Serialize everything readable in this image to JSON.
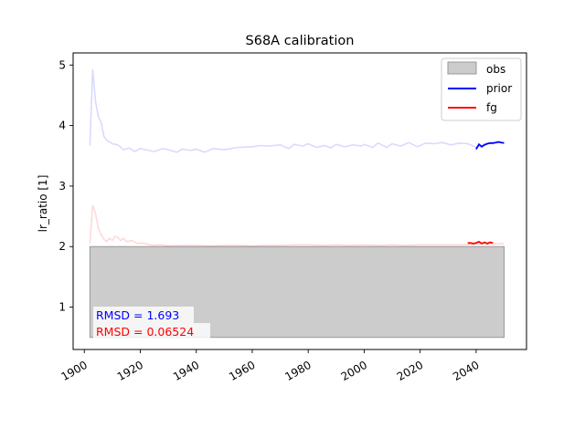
{
  "chart_data": {
    "type": "line",
    "title": "S68A calibration",
    "xlabel": "",
    "ylabel": "lr_ratio [1]",
    "xlim": [
      1896,
      2058
    ],
    "ylim": [
      0.3,
      5.2
    ],
    "xticks": [
      1900,
      1920,
      1940,
      1960,
      1980,
      2000,
      2020,
      2040
    ],
    "xtick_labels": [
      "1900",
      "1920",
      "1940",
      "1960",
      "1980",
      "2000",
      "2020",
      "2040"
    ],
    "yticks": [
      1,
      2,
      3,
      4,
      5
    ],
    "ytick_labels": [
      "1",
      "2",
      "3",
      "4",
      "5"
    ],
    "grid": false,
    "legend_position": "top-right",
    "obs": {
      "name": "obs",
      "x_range": [
        1902,
        2050
      ],
      "y_range": [
        0.5,
        2.0
      ],
      "color": "#cccccc",
      "edge_color": "#999999"
    },
    "series": [
      {
        "name": "prior",
        "color": "#0000ff",
        "x": [
          2040,
          2041,
          2042,
          2043,
          2044,
          2045,
          2046,
          2047,
          2048,
          2049,
          2050
        ],
        "values": [
          3.61,
          3.69,
          3.65,
          3.68,
          3.7,
          3.71,
          3.71,
          3.72,
          3.73,
          3.72,
          3.71
        ]
      },
      {
        "name": "fg",
        "color": "#ff0000",
        "x": [
          2037,
          2038,
          2039,
          2040,
          2041,
          2042,
          2043,
          2044,
          2045,
          2046
        ],
        "values": [
          2.06,
          2.06,
          2.05,
          2.06,
          2.08,
          2.05,
          2.07,
          2.05,
          2.07,
          2.06
        ]
      }
    ],
    "background_lines": [
      {
        "color": "#0000ff",
        "opacity": 0.15,
        "x": [
          1902,
          1903,
          1904,
          1905,
          1906,
          1907,
          1908,
          1910,
          1912,
          1914,
          1916,
          1918,
          1920,
          1922,
          1925,
          1928,
          1930,
          1933,
          1935,
          1938,
          1940,
          1943,
          1946,
          1950,
          1955,
          1960,
          1963,
          1966,
          1970,
          1973,
          1975,
          1978,
          1980,
          1983,
          1986,
          1988,
          1990,
          1993,
          1996,
          1999,
          2000,
          2003,
          2005,
          2008,
          2010,
          2013,
          2016,
          2019,
          2022,
          2025,
          2028,
          2031,
          2034,
          2037,
          2040,
          2043,
          2046,
          2048,
          2050
        ],
        "values": [
          3.67,
          4.93,
          4.4,
          4.15,
          4.05,
          3.82,
          3.76,
          3.7,
          3.68,
          3.6,
          3.63,
          3.57,
          3.62,
          3.6,
          3.57,
          3.62,
          3.6,
          3.56,
          3.61,
          3.59,
          3.61,
          3.56,
          3.62,
          3.6,
          3.64,
          3.65,
          3.67,
          3.66,
          3.68,
          3.62,
          3.69,
          3.66,
          3.7,
          3.64,
          3.67,
          3.63,
          3.69,
          3.65,
          3.68,
          3.66,
          3.69,
          3.64,
          3.71,
          3.64,
          3.7,
          3.66,
          3.72,
          3.65,
          3.71,
          3.7,
          3.72,
          3.68,
          3.71,
          3.7,
          3.64,
          3.7,
          3.71,
          3.72,
          3.72
        ]
      },
      {
        "color": "#ff0000",
        "opacity": 0.15,
        "x": [
          1902,
          1903,
          1904,
          1905,
          1906,
          1907,
          1908,
          1909,
          1910,
          1911,
          1912,
          1913,
          1914,
          1915,
          1917,
          1919,
          1921,
          1924,
          1927,
          1930,
          1935,
          1940,
          1945,
          1950,
          1955,
          1960,
          1965,
          1970,
          1975,
          1980,
          1985,
          1990,
          1995,
          2000,
          2005,
          2010,
          2015,
          2020,
          2025,
          2030,
          2035,
          2040,
          2045,
          2050
        ],
        "values": [
          2.05,
          2.68,
          2.55,
          2.3,
          2.2,
          2.12,
          2.08,
          2.14,
          2.1,
          2.17,
          2.15,
          2.1,
          2.14,
          2.08,
          2.1,
          2.05,
          2.06,
          2.02,
          2.03,
          2.01,
          2.02,
          2.02,
          2.01,
          2.02,
          2.02,
          2.01,
          2.02,
          2.02,
          2.03,
          2.03,
          2.02,
          2.03,
          2.02,
          2.03,
          2.02,
          2.03,
          2.02,
          2.03,
          2.03,
          2.03,
          2.03,
          2.04,
          2.04,
          2.05
        ]
      }
    ],
    "annotations": [
      {
        "name": "rmsd-prior",
        "text": "RMSD = 1.693",
        "color": "#0000ff"
      },
      {
        "name": "rmsd-fg",
        "text": "RMSD = 0.06524",
        "color": "#ff0000"
      }
    ]
  }
}
